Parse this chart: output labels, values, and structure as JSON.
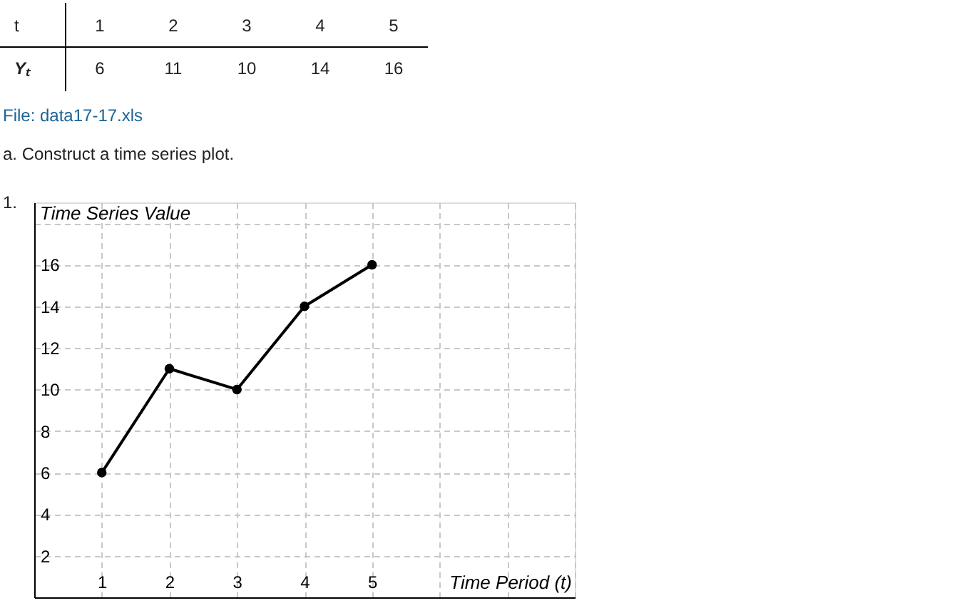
{
  "chart_data": {
    "type": "line",
    "xlabel": "Time Period (t)",
    "ylabel": "Time Series Value",
    "x": [
      1,
      2,
      3,
      4,
      5
    ],
    "series": [
      {
        "color": "#000000",
        "values": [
          6,
          11,
          10,
          14,
          16
        ]
      }
    ],
    "xlim": [
      0,
      8
    ],
    "xticks": [
      1,
      2,
      3,
      4,
      5,
      {
        "value": 6,
        "label": null
      },
      {
        "value": 7,
        "label": null
      },
      {
        "value": 8,
        "label": null
      }
    ],
    "ylim": [
      0,
      19
    ],
    "yticks": [
      2,
      4,
      6,
      8,
      10,
      12,
      14,
      16,
      {
        "value": 18,
        "label": null
      }
    ],
    "grid": true,
    "marker": "circle",
    "line_style": "solid",
    "annotations": [
      "t",
      "1",
      "2",
      "3",
      "4",
      "5",
      "Yₜ",
      "6",
      "11",
      "10",
      "14",
      "16",
      "File: data17-17.xls",
      "a. Construct a time series plot.",
      "1."
    ]
  }
}
